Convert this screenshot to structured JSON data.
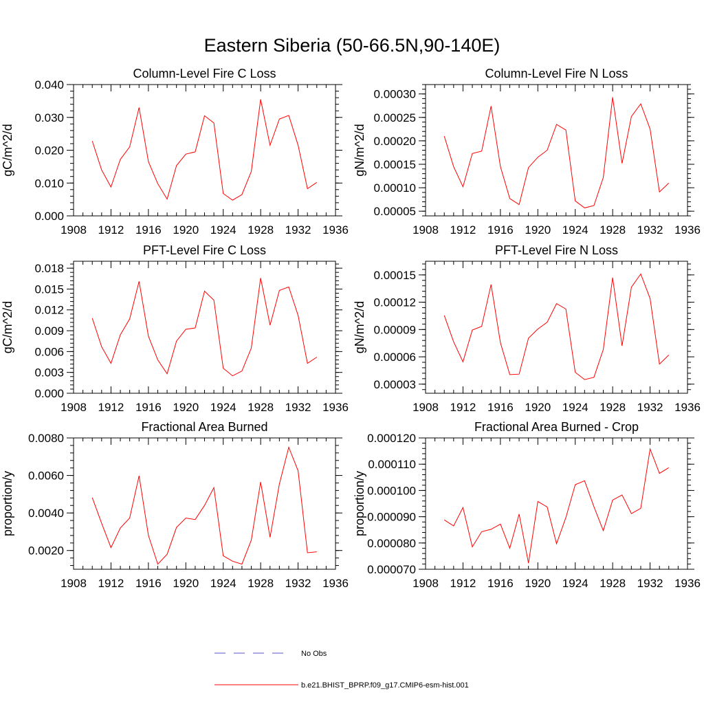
{
  "title": "Eastern Siberia (50-66.5N,90-140E)",
  "colors": {
    "model_line": "#ff0000",
    "obs_line": "#5555cc",
    "axis": "#000000"
  },
  "legend": {
    "obs_label": "No Obs",
    "model_label": "b.e21.BHIST_BPRP.f09_g17.CMIP6-esm-hist.001"
  },
  "chart_data": [
    {
      "type": "line",
      "title": "Column-Level Fire C Loss",
      "ylabel": "gC/m^2/d",
      "xlim": [
        1908,
        1936
      ],
      "ylim": [
        0,
        0.04
      ],
      "xticks": [
        1908,
        1912,
        1916,
        1920,
        1924,
        1928,
        1932,
        1936
      ],
      "yticks": [
        0.0,
        0.01,
        0.02,
        0.03,
        0.04
      ],
      "ytick_labels": [
        "0.000",
        "0.010",
        "0.020",
        "0.030",
        "0.040"
      ],
      "x": [
        1910,
        1911,
        1912,
        1913,
        1914,
        1915,
        1916,
        1917,
        1918,
        1919,
        1920,
        1921,
        1922,
        1923,
        1924,
        1925,
        1926,
        1927,
        1928,
        1929,
        1930,
        1931,
        1932,
        1933,
        1934
      ],
      "series": [
        {
          "values": [
            0.0228,
            0.014,
            0.0088,
            0.0172,
            0.021,
            0.033,
            0.0165,
            0.0098,
            0.0051,
            0.0153,
            0.0188,
            0.0195,
            0.0305,
            0.0283,
            0.0068,
            0.0048,
            0.0065,
            0.0135,
            0.0355,
            0.0215,
            0.0295,
            0.0306,
            0.0215,
            0.0083,
            0.0102
          ]
        }
      ]
    },
    {
      "type": "line",
      "title": "Column-Level Fire N Loss",
      "ylabel": "gN/m^2/d",
      "xlim": [
        1908,
        1936
      ],
      "ylim": [
        4e-05,
        0.00032
      ],
      "xticks": [
        1908,
        1912,
        1916,
        1920,
        1924,
        1928,
        1932,
        1936
      ],
      "yticks": [
        5e-05,
        0.0001,
        0.00015,
        0.0002,
        0.00025,
        0.0003
      ],
      "ytick_labels": [
        "0.00005",
        "0.00010",
        "0.00015",
        "0.00020",
        "0.00025",
        "0.00030"
      ],
      "x": [
        1910,
        1911,
        1912,
        1913,
        1914,
        1915,
        1916,
        1917,
        1918,
        1919,
        1920,
        1921,
        1922,
        1923,
        1924,
        1925,
        1926,
        1927,
        1928,
        1929,
        1930,
        1931,
        1932,
        1933,
        1934
      ],
      "series": [
        {
          "values": [
            0.00021,
            0.000145,
            0.000102,
            0.000173,
            0.000178,
            0.000274,
            0.000145,
            7.7e-05,
            6.4e-05,
            0.000143,
            0.000165,
            0.00018,
            0.000235,
            0.000223,
            7.2e-05,
            5.7e-05,
            6.2e-05,
            0.000122,
            0.000293,
            0.000152,
            0.000252,
            0.000279,
            0.000225,
            9.1e-05,
            0.00011
          ]
        }
      ]
    },
    {
      "type": "line",
      "title": "PFT-Level Fire C Loss",
      "ylabel": "gC/m^2/d",
      "xlim": [
        1908,
        1936
      ],
      "ylim": [
        0,
        0.019
      ],
      "xticks": [
        1908,
        1912,
        1916,
        1920,
        1924,
        1928,
        1932,
        1936
      ],
      "yticks": [
        0.0,
        0.003,
        0.006,
        0.009,
        0.012,
        0.015,
        0.018
      ],
      "ytick_labels": [
        "0.000",
        "0.003",
        "0.006",
        "0.009",
        "0.012",
        "0.015",
        "0.018"
      ],
      "x": [
        1910,
        1911,
        1912,
        1913,
        1914,
        1915,
        1916,
        1917,
        1918,
        1919,
        1920,
        1921,
        1922,
        1923,
        1924,
        1925,
        1926,
        1927,
        1928,
        1929,
        1930,
        1931,
        1932,
        1933,
        1934
      ],
      "series": [
        {
          "values": [
            0.0108,
            0.0067,
            0.0043,
            0.0084,
            0.0107,
            0.0161,
            0.0082,
            0.0048,
            0.0028,
            0.0075,
            0.0092,
            0.0094,
            0.0147,
            0.0134,
            0.0036,
            0.0025,
            0.0032,
            0.0065,
            0.0166,
            0.0098,
            0.0148,
            0.0153,
            0.0112,
            0.0043,
            0.0052
          ]
        }
      ]
    },
    {
      "type": "line",
      "title": "PFT-Level Fire N Loss",
      "ylabel": "gN/m^2/d",
      "xlim": [
        1908,
        1936
      ],
      "ylim": [
        2e-05,
        0.000165
      ],
      "xticks": [
        1908,
        1912,
        1916,
        1920,
        1924,
        1928,
        1932,
        1936
      ],
      "yticks": [
        3e-05,
        6e-05,
        9e-05,
        0.00012,
        0.00015
      ],
      "ytick_labels": [
        "0.00003",
        "0.00006",
        "0.00009",
        "0.00012",
        "0.00015"
      ],
      "x": [
        1910,
        1911,
        1912,
        1913,
        1914,
        1915,
        1916,
        1917,
        1918,
        1919,
        1920,
        1921,
        1922,
        1923,
        1924,
        1925,
        1926,
        1927,
        1928,
        1929,
        1930,
        1931,
        1932,
        1933,
        1934
      ],
      "series": [
        {
          "values": [
            0.0001055,
            7.65e-05,
            5.45e-05,
            8.95e-05,
            9.35e-05,
            0.0001395,
            7.55e-05,
            4.05e-05,
            4.1e-05,
            8.05e-05,
            9.05e-05,
            9.8e-05,
            0.0001185,
            0.0001125,
            4.3e-05,
            3.5e-05,
            3.75e-05,
            6.8e-05,
            0.000147,
            7.2e-05,
            0.0001365,
            0.000151,
            0.000124,
            5.2e-05,
            6.2e-05
          ]
        }
      ]
    },
    {
      "type": "line",
      "title": "Fractional Area Burned",
      "ylabel": "proportion/y",
      "xlim": [
        1908,
        1936
      ],
      "ylim": [
        0.001,
        0.008
      ],
      "xticks": [
        1908,
        1912,
        1916,
        1920,
        1924,
        1928,
        1932,
        1936
      ],
      "yticks": [
        0.002,
        0.004,
        0.006,
        0.008
      ],
      "ytick_labels": [
        "0.0020",
        "0.0040",
        "0.0060",
        "0.0080"
      ],
      "x": [
        1910,
        1911,
        1912,
        1913,
        1914,
        1915,
        1916,
        1917,
        1918,
        1919,
        1920,
        1921,
        1922,
        1923,
        1924,
        1925,
        1926,
        1927,
        1928,
        1929,
        1930,
        1931,
        1932,
        1933,
        1934
      ],
      "series": [
        {
          "values": [
            0.00482,
            0.00345,
            0.00215,
            0.0032,
            0.00373,
            0.00598,
            0.0028,
            0.00127,
            0.0018,
            0.00323,
            0.00373,
            0.00365,
            0.0044,
            0.00535,
            0.00172,
            0.00143,
            0.00127,
            0.00255,
            0.00565,
            0.0027,
            0.00555,
            0.0075,
            0.00625,
            0.00188,
            0.00193
          ]
        }
      ]
    },
    {
      "type": "line",
      "title": "Fractional Area Burned - Crop",
      "ylabel": "proportion/y",
      "xlim": [
        1908,
        1936
      ],
      "ylim": [
        7e-05,
        0.00012
      ],
      "xticks": [
        1908,
        1912,
        1916,
        1920,
        1924,
        1928,
        1932,
        1936
      ],
      "yticks": [
        7e-05,
        8e-05,
        9e-05,
        0.0001,
        0.00011,
        0.00012
      ],
      "ytick_labels": [
        "0.000070",
        "0.000080",
        "0.000090",
        "0.000100",
        "0.000110",
        "0.000120"
      ],
      "x": [
        1910,
        1911,
        1912,
        1913,
        1914,
        1915,
        1916,
        1917,
        1918,
        1919,
        1920,
        1921,
        1922,
        1923,
        1924,
        1925,
        1926,
        1927,
        1928,
        1929,
        1930,
        1931,
        1932,
        1933,
        1934
      ],
      "series": [
        {
          "values": [
            8.88e-05,
            8.65e-05,
            9.35e-05,
            7.85e-05,
            8.43e-05,
            8.52e-05,
            8.72e-05,
            7.8e-05,
            9.1e-05,
            7.23e-05,
            9.58e-05,
            9.37e-05,
            7.97e-05,
            8.97e-05,
            0.0001022,
            0.0001037,
            9.38e-05,
            8.47e-05,
            9.63e-05,
            9.83e-05,
            9.12e-05,
            9.32e-05,
            0.0001158,
            0.0001065,
            0.0001087
          ]
        }
      ]
    }
  ]
}
